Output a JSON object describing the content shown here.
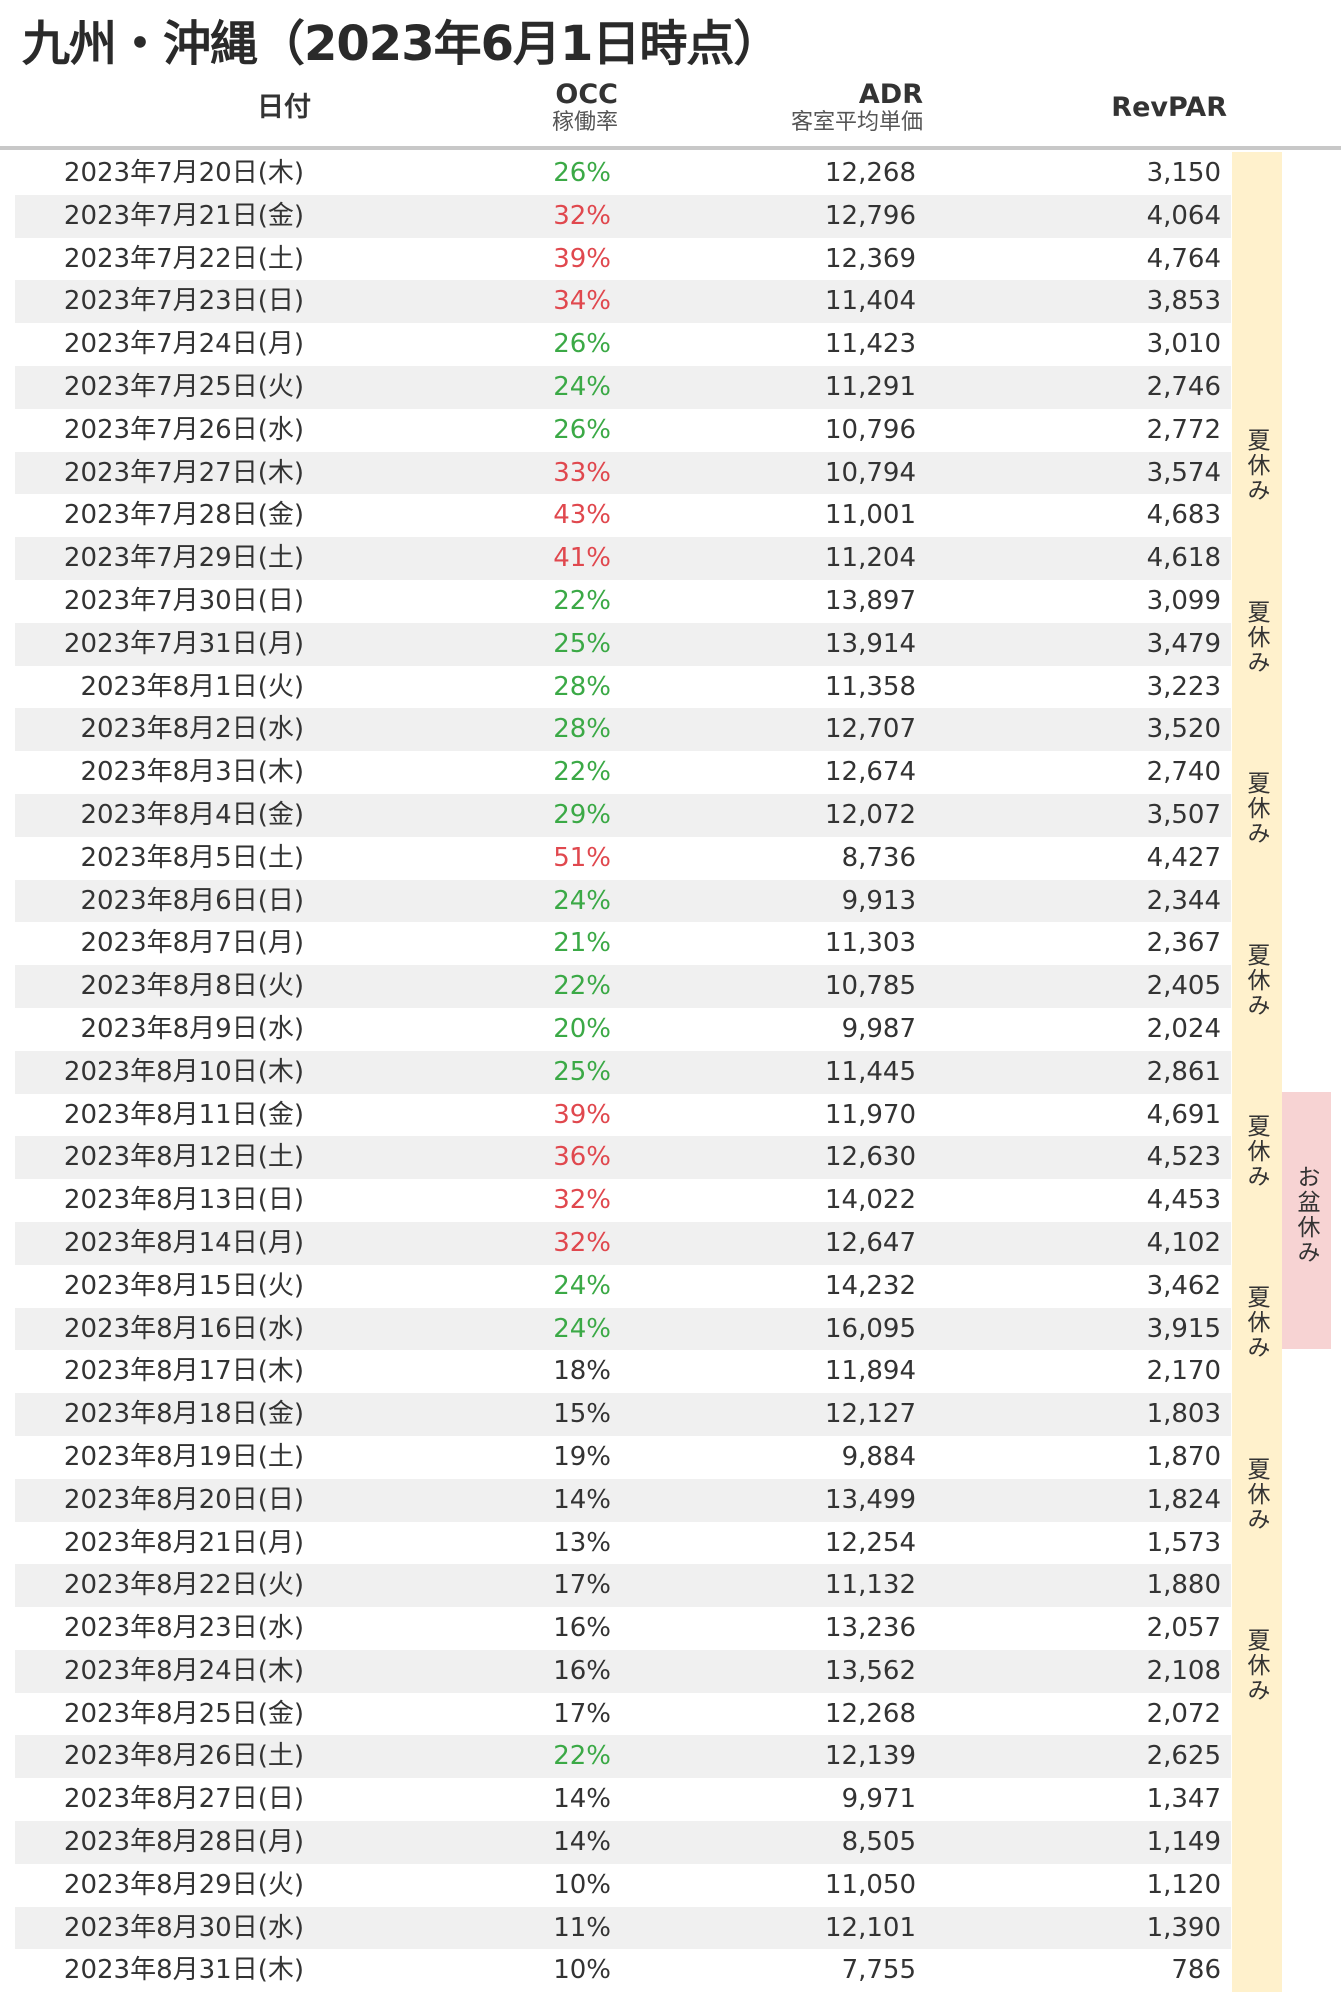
{
  "title": "九州・沖縄（2023年6月1日時点）",
  "headers": {
    "date": "日付",
    "occ": "OCC",
    "occ_sub": "稼働率",
    "adr": "ADR",
    "adr_sub": "客室平均単価",
    "revpar": "RevPAR"
  },
  "colors": {
    "green": "#3ba946",
    "red": "#e0484e",
    "summer_band": "#fff1cc",
    "obon_band": "#f7d3d3"
  },
  "band_labels": {
    "summer": [
      "夏休み",
      "夏休み",
      "夏休み",
      "夏休み",
      "夏休み",
      "夏休み",
      "夏休み",
      "夏休み"
    ],
    "obon": "お盆休み"
  },
  "rows": [
    {
      "date": "2023年7月20日(木)",
      "occ": "26%",
      "occ_color": "green",
      "adr": "12,268",
      "revpar": "3,150"
    },
    {
      "date": "2023年7月21日(金)",
      "occ": "32%",
      "occ_color": "red",
      "adr": "12,796",
      "revpar": "4,064"
    },
    {
      "date": "2023年7月22日(土)",
      "occ": "39%",
      "occ_color": "red",
      "adr": "12,369",
      "revpar": "4,764"
    },
    {
      "date": "2023年7月23日(日)",
      "occ": "34%",
      "occ_color": "red",
      "adr": "11,404",
      "revpar": "3,853"
    },
    {
      "date": "2023年7月24日(月)",
      "occ": "26%",
      "occ_color": "green",
      "adr": "11,423",
      "revpar": "3,010"
    },
    {
      "date": "2023年7月25日(火)",
      "occ": "24%",
      "occ_color": "green",
      "adr": "11,291",
      "revpar": "2,746"
    },
    {
      "date": "2023年7月26日(水)",
      "occ": "26%",
      "occ_color": "green",
      "adr": "10,796",
      "revpar": "2,772"
    },
    {
      "date": "2023年7月27日(木)",
      "occ": "33%",
      "occ_color": "red",
      "adr": "10,794",
      "revpar": "3,574"
    },
    {
      "date": "2023年7月28日(金)",
      "occ": "43%",
      "occ_color": "red",
      "adr": "11,001",
      "revpar": "4,683"
    },
    {
      "date": "2023年7月29日(土)",
      "occ": "41%",
      "occ_color": "red",
      "adr": "11,204",
      "revpar": "4,618"
    },
    {
      "date": "2023年7月30日(日)",
      "occ": "22%",
      "occ_color": "green",
      "adr": "13,897",
      "revpar": "3,099"
    },
    {
      "date": "2023年7月31日(月)",
      "occ": "25%",
      "occ_color": "green",
      "adr": "13,914",
      "revpar": "3,479"
    },
    {
      "date": "2023年8月1日(火)",
      "occ": "28%",
      "occ_color": "green",
      "adr": "11,358",
      "revpar": "3,223"
    },
    {
      "date": "2023年8月2日(水)",
      "occ": "28%",
      "occ_color": "green",
      "adr": "12,707",
      "revpar": "3,520"
    },
    {
      "date": "2023年8月3日(木)",
      "occ": "22%",
      "occ_color": "green",
      "adr": "12,674",
      "revpar": "2,740"
    },
    {
      "date": "2023年8月4日(金)",
      "occ": "29%",
      "occ_color": "green",
      "adr": "12,072",
      "revpar": "3,507"
    },
    {
      "date": "2023年8月5日(土)",
      "occ": "51%",
      "occ_color": "red",
      "adr": "8,736",
      "revpar": "4,427"
    },
    {
      "date": "2023年8月6日(日)",
      "occ": "24%",
      "occ_color": "green",
      "adr": "9,913",
      "revpar": "2,344"
    },
    {
      "date": "2023年8月7日(月)",
      "occ": "21%",
      "occ_color": "green",
      "adr": "11,303",
      "revpar": "2,367"
    },
    {
      "date": "2023年8月8日(火)",
      "occ": "22%",
      "occ_color": "green",
      "adr": "10,785",
      "revpar": "2,405"
    },
    {
      "date": "2023年8月9日(水)",
      "occ": "20%",
      "occ_color": "green",
      "adr": "9,987",
      "revpar": "2,024"
    },
    {
      "date": "2023年8月10日(木)",
      "occ": "25%",
      "occ_color": "green",
      "adr": "11,445",
      "revpar": "2,861"
    },
    {
      "date": "2023年8月11日(金)",
      "occ": "39%",
      "occ_color": "red",
      "adr": "11,970",
      "revpar": "4,691"
    },
    {
      "date": "2023年8月12日(土)",
      "occ": "36%",
      "occ_color": "red",
      "adr": "12,630",
      "revpar": "4,523"
    },
    {
      "date": "2023年8月13日(日)",
      "occ": "32%",
      "occ_color": "red",
      "adr": "14,022",
      "revpar": "4,453"
    },
    {
      "date": "2023年8月14日(月)",
      "occ": "32%",
      "occ_color": "red",
      "adr": "12,647",
      "revpar": "4,102"
    },
    {
      "date": "2023年8月15日(火)",
      "occ": "24%",
      "occ_color": "green",
      "adr": "14,232",
      "revpar": "3,462"
    },
    {
      "date": "2023年8月16日(水)",
      "occ": "24%",
      "occ_color": "green",
      "adr": "16,095",
      "revpar": "3,915"
    },
    {
      "date": "2023年8月17日(木)",
      "occ": "18%",
      "occ_color": "plain",
      "adr": "11,894",
      "revpar": "2,170"
    },
    {
      "date": "2023年8月18日(金)",
      "occ": "15%",
      "occ_color": "plain",
      "adr": "12,127",
      "revpar": "1,803"
    },
    {
      "date": "2023年8月19日(土)",
      "occ": "19%",
      "occ_color": "plain",
      "adr": "9,884",
      "revpar": "1,870"
    },
    {
      "date": "2023年8月20日(日)",
      "occ": "14%",
      "occ_color": "plain",
      "adr": "13,499",
      "revpar": "1,824"
    },
    {
      "date": "2023年8月21日(月)",
      "occ": "13%",
      "occ_color": "plain",
      "adr": "12,254",
      "revpar": "1,573"
    },
    {
      "date": "2023年8月22日(火)",
      "occ": "17%",
      "occ_color": "plain",
      "adr": "11,132",
      "revpar": "1,880"
    },
    {
      "date": "2023年8月23日(水)",
      "occ": "16%",
      "occ_color": "plain",
      "adr": "13,236",
      "revpar": "2,057"
    },
    {
      "date": "2023年8月24日(木)",
      "occ": "16%",
      "occ_color": "plain",
      "adr": "13,562",
      "revpar": "2,108"
    },
    {
      "date": "2023年8月25日(金)",
      "occ": "17%",
      "occ_color": "plain",
      "adr": "12,268",
      "revpar": "2,072"
    },
    {
      "date": "2023年8月26日(土)",
      "occ": "22%",
      "occ_color": "green",
      "adr": "12,139",
      "revpar": "2,625"
    },
    {
      "date": "2023年8月27日(日)",
      "occ": "14%",
      "occ_color": "plain",
      "adr": "9,971",
      "revpar": "1,347"
    },
    {
      "date": "2023年8月28日(月)",
      "occ": "14%",
      "occ_color": "plain",
      "adr": "8,505",
      "revpar": "1,149"
    },
    {
      "date": "2023年8月29日(火)",
      "occ": "10%",
      "occ_color": "plain",
      "adr": "11,050",
      "revpar": "1,120"
    },
    {
      "date": "2023年8月30日(水)",
      "occ": "11%",
      "occ_color": "plain",
      "adr": "12,101",
      "revpar": "1,390"
    },
    {
      "date": "2023年8月31日(木)",
      "occ": "10%",
      "occ_color": "plain",
      "adr": "7,755",
      "revpar": "786"
    }
  ]
}
